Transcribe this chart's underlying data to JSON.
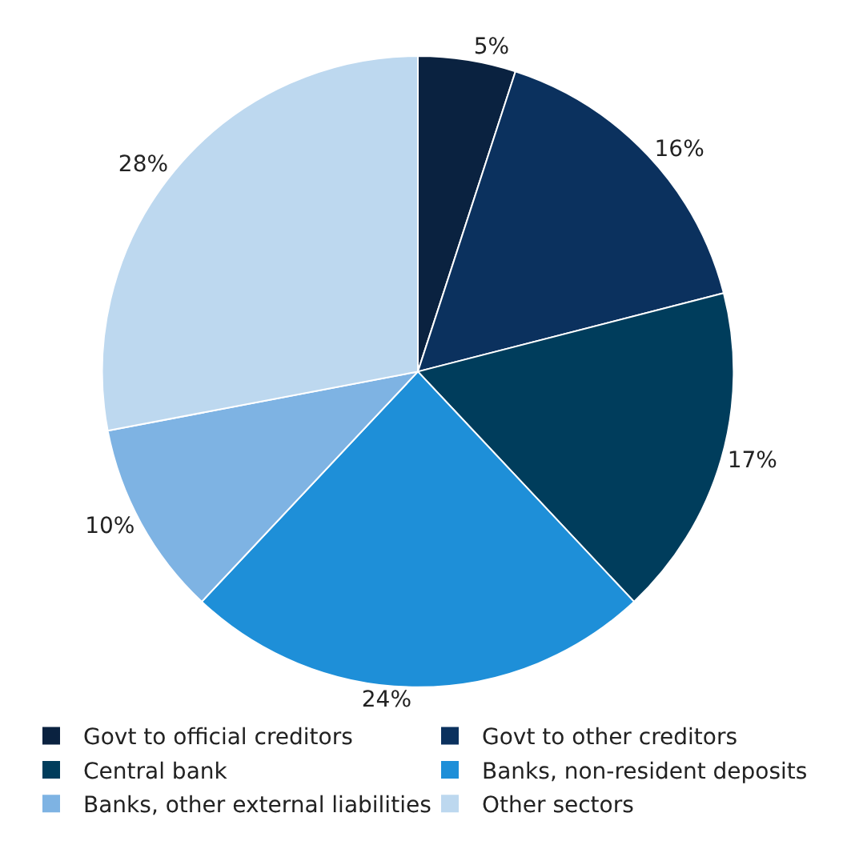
{
  "chart_data": {
    "type": "pie",
    "categories": [
      "Govt to official creditors",
      "Govt to other creditors",
      "Central bank",
      "Banks, non-resident deposits",
      "Banks, other external liabilities",
      "Other sectors"
    ],
    "values": [
      5,
      16,
      17,
      24,
      10,
      28
    ],
    "value_labels": [
      "5%",
      "16%",
      "17%",
      "24%",
      "10%",
      "28%"
    ],
    "colors": [
      "#0a2240",
      "#0b315e",
      "#003d5c",
      "#1e8fd8",
      "#7eb3e3",
      "#bdd8ef"
    ],
    "legend": "bottom"
  }
}
